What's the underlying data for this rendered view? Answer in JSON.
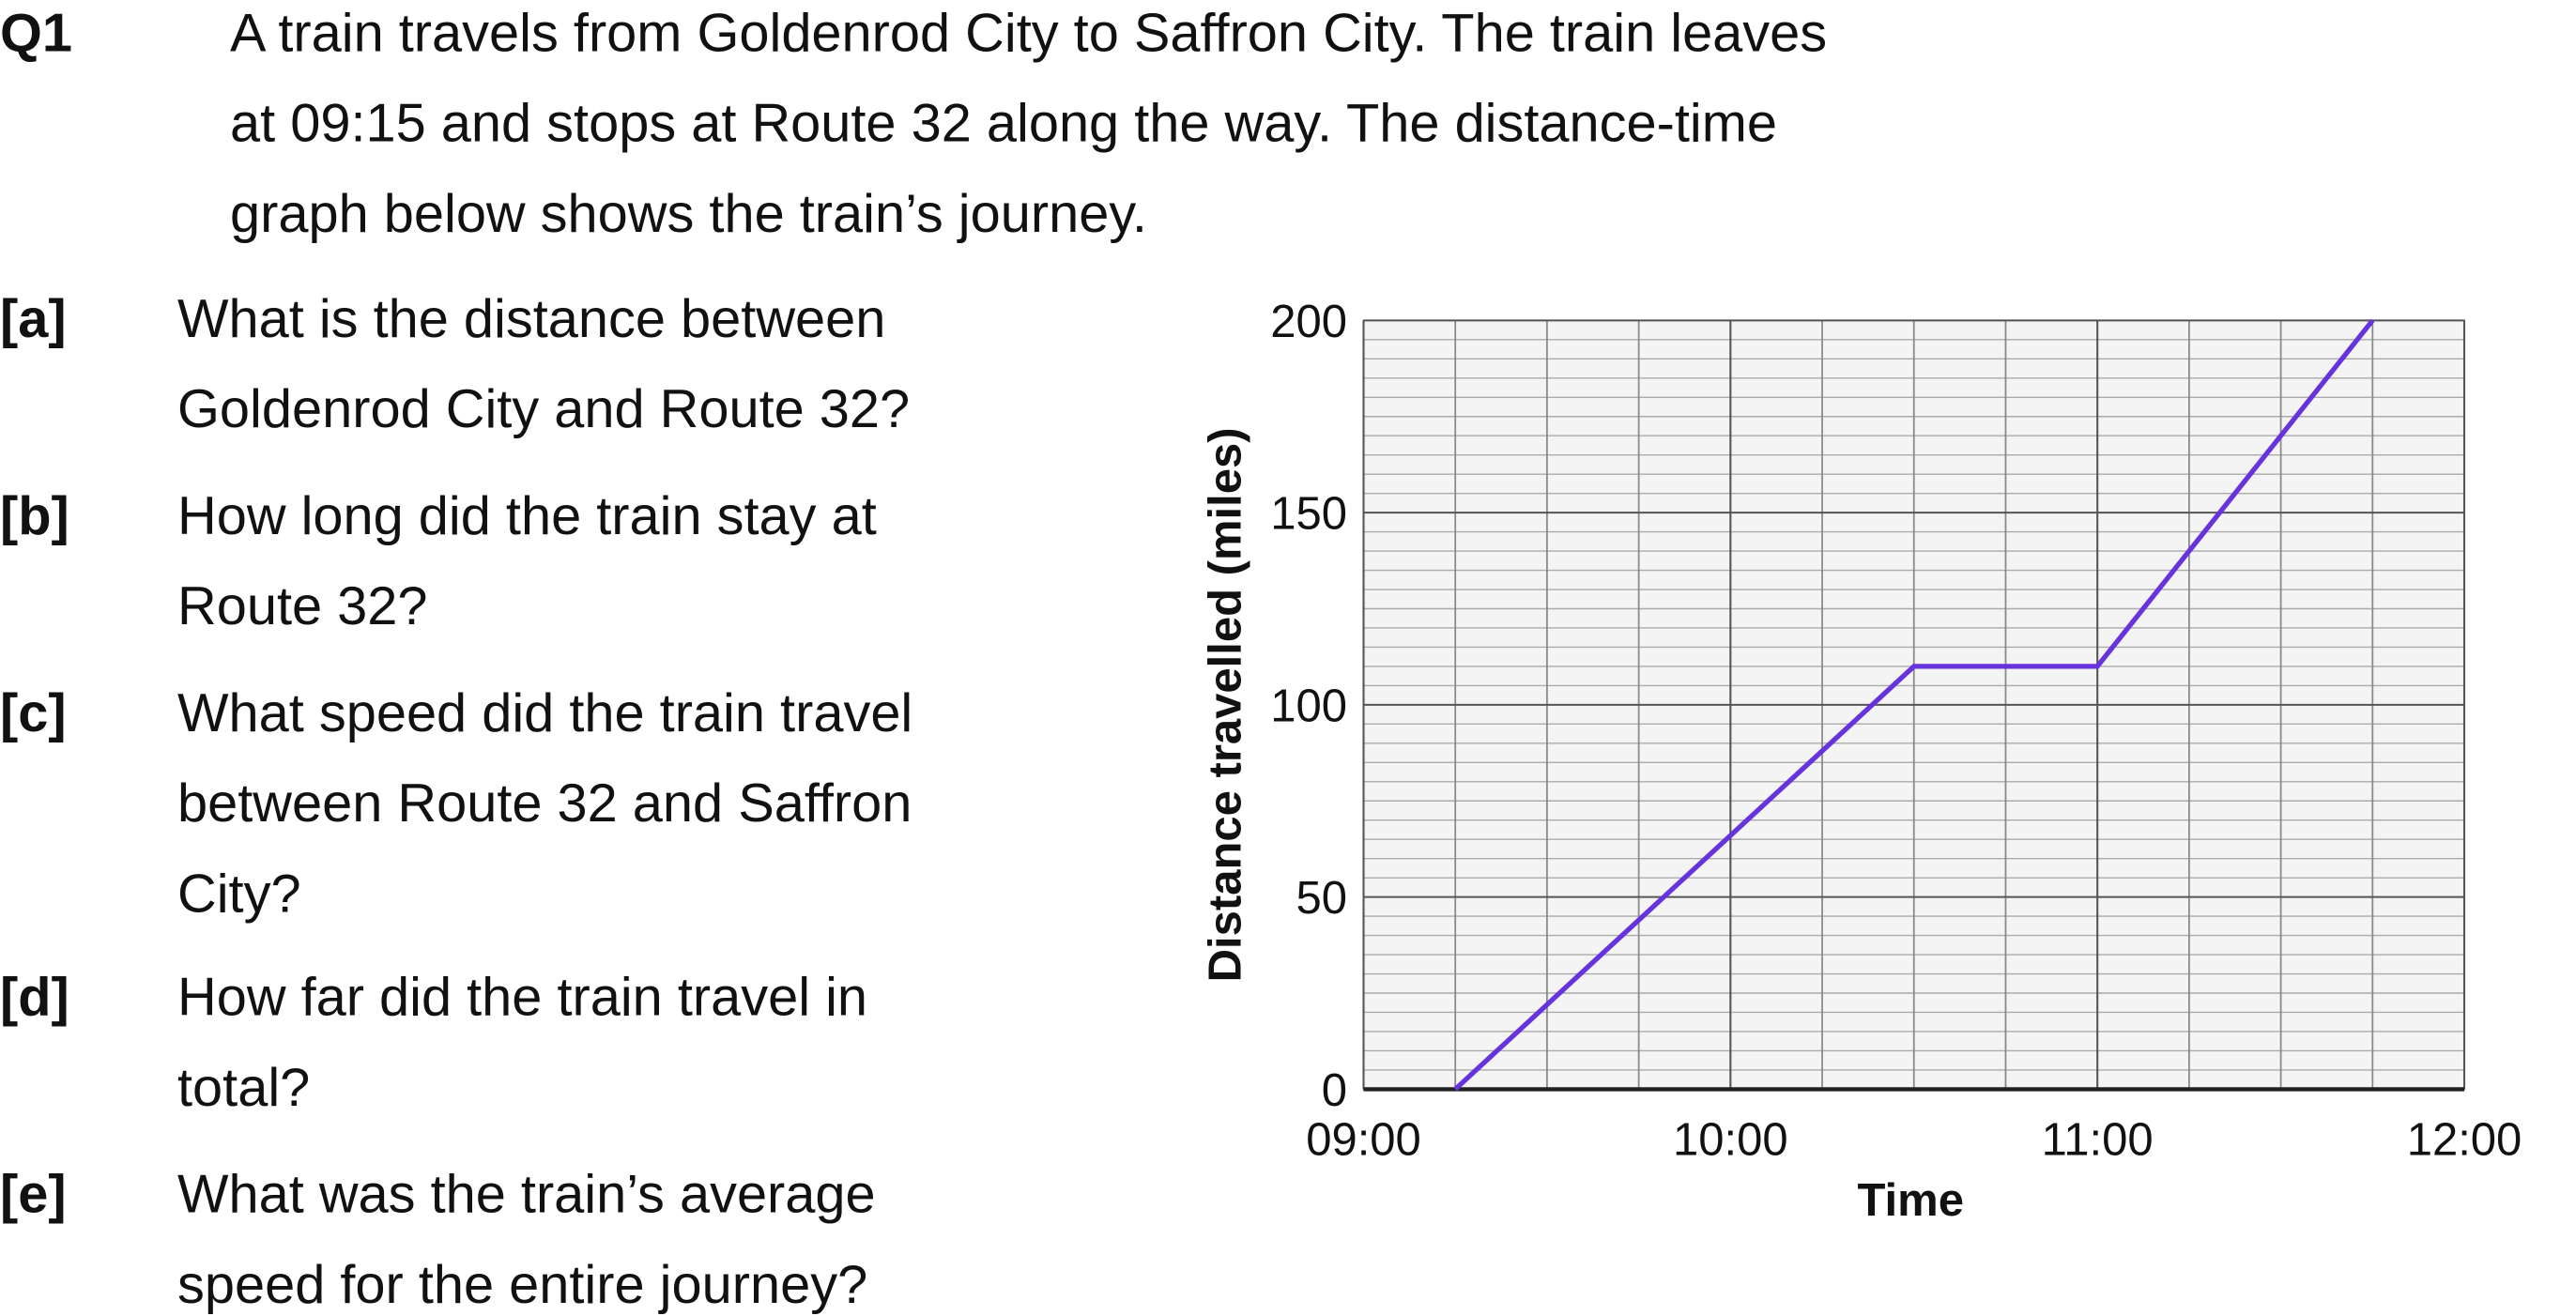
{
  "question": {
    "number": "Q1",
    "lines": [
      "A train travels from Goldenrod City to Saffron City. The train leaves",
      "at 09:15 and stops at Route 32 along the way. The distance-time",
      "graph below shows the train’s journey."
    ]
  },
  "parts": [
    {
      "label": "[a]",
      "lines": [
        "What is the distance between",
        "Goldenrod City and Route 32?"
      ]
    },
    {
      "label": "[b]",
      "lines": [
        "How long did the train stay at",
        "Route 32?"
      ]
    },
    {
      "label": "[c]",
      "lines": [
        "What speed did the train travel",
        "between Route 32 and Saffron",
        "City?"
      ]
    },
    {
      "label": "[d]",
      "lines": [
        "How far did the train travel in",
        "total?"
      ]
    },
    {
      "label": "[e]",
      "lines": [
        "What was the train’s average",
        "speed for the entire journey?"
      ]
    }
  ],
  "chart_data": {
    "type": "line",
    "x_label": "Time",
    "y_label": "Distance travelled (miles)",
    "x": [
      9.25,
      10.5,
      11,
      11.75
    ],
    "values": [
      0,
      110,
      110,
      200
    ],
    "color": "#6633dd",
    "xlim": [
      9,
      12
    ],
    "xticks": [
      {
        "value": 9,
        "label": "09:00"
      },
      {
        "value": 10,
        "label": "10:00"
      },
      {
        "value": 11,
        "label": "11:00"
      },
      {
        "value": 12,
        "label": "12:00"
      }
    ],
    "ylim": [
      0,
      200
    ],
    "yticks": [
      0,
      50,
      100,
      150,
      200
    ],
    "grid": true
  }
}
